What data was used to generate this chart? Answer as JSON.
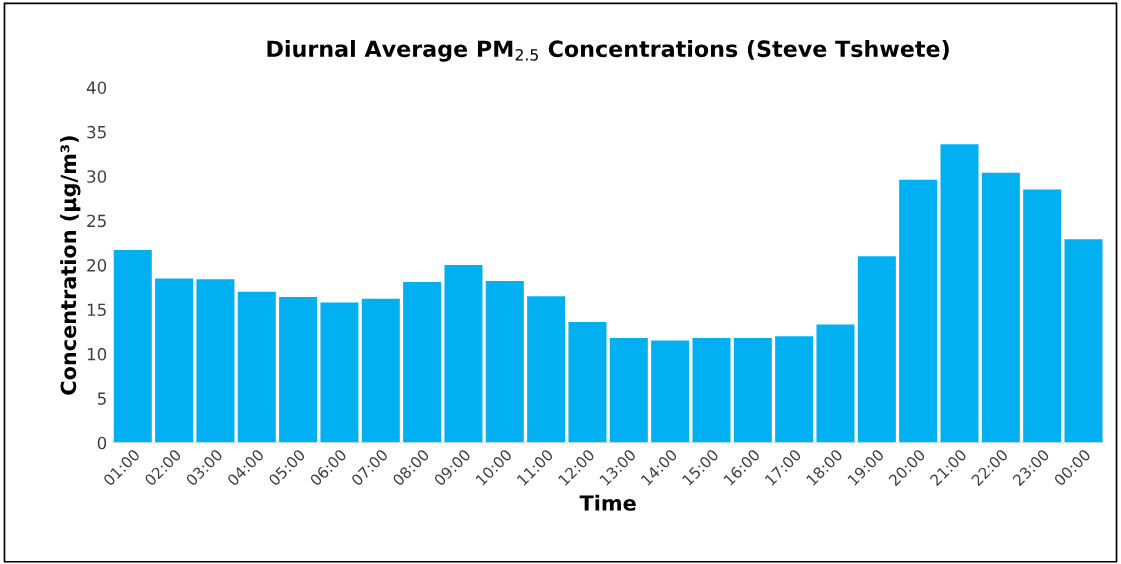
{
  "chart_data": {
    "type": "bar",
    "title": "Diurnal Average PM$_{2.5}$ Concentrations (Steve Tshwete)",
    "xlabel": "Time",
    "ylabel": "Concentration (µg/m³)",
    "categories": [
      "01:00",
      "02:00",
      "03:00",
      "04:00",
      "05:00",
      "06:00",
      "07:00",
      "08:00",
      "09:00",
      "10:00",
      "11:00",
      "12:00",
      "13:00",
      "14:00",
      "15:00",
      "16:00",
      "17:00",
      "18:00",
      "19:00",
      "20:00",
      "21:00",
      "22:00",
      "23:00",
      "00:00"
    ],
    "values": [
      21.7,
      18.5,
      18.4,
      17.0,
      16.4,
      15.8,
      16.2,
      18.1,
      20.0,
      18.2,
      16.5,
      13.6,
      11.8,
      11.5,
      11.8,
      11.8,
      12.0,
      13.3,
      21.0,
      29.6,
      33.6,
      30.4,
      28.5,
      22.9
    ],
    "color": "#00b0f0",
    "ylim": [
      0,
      40
    ],
    "yticks": [
      0,
      5,
      10,
      15,
      20,
      25,
      30,
      35,
      40
    ],
    "grid": false,
    "legend": false
  }
}
